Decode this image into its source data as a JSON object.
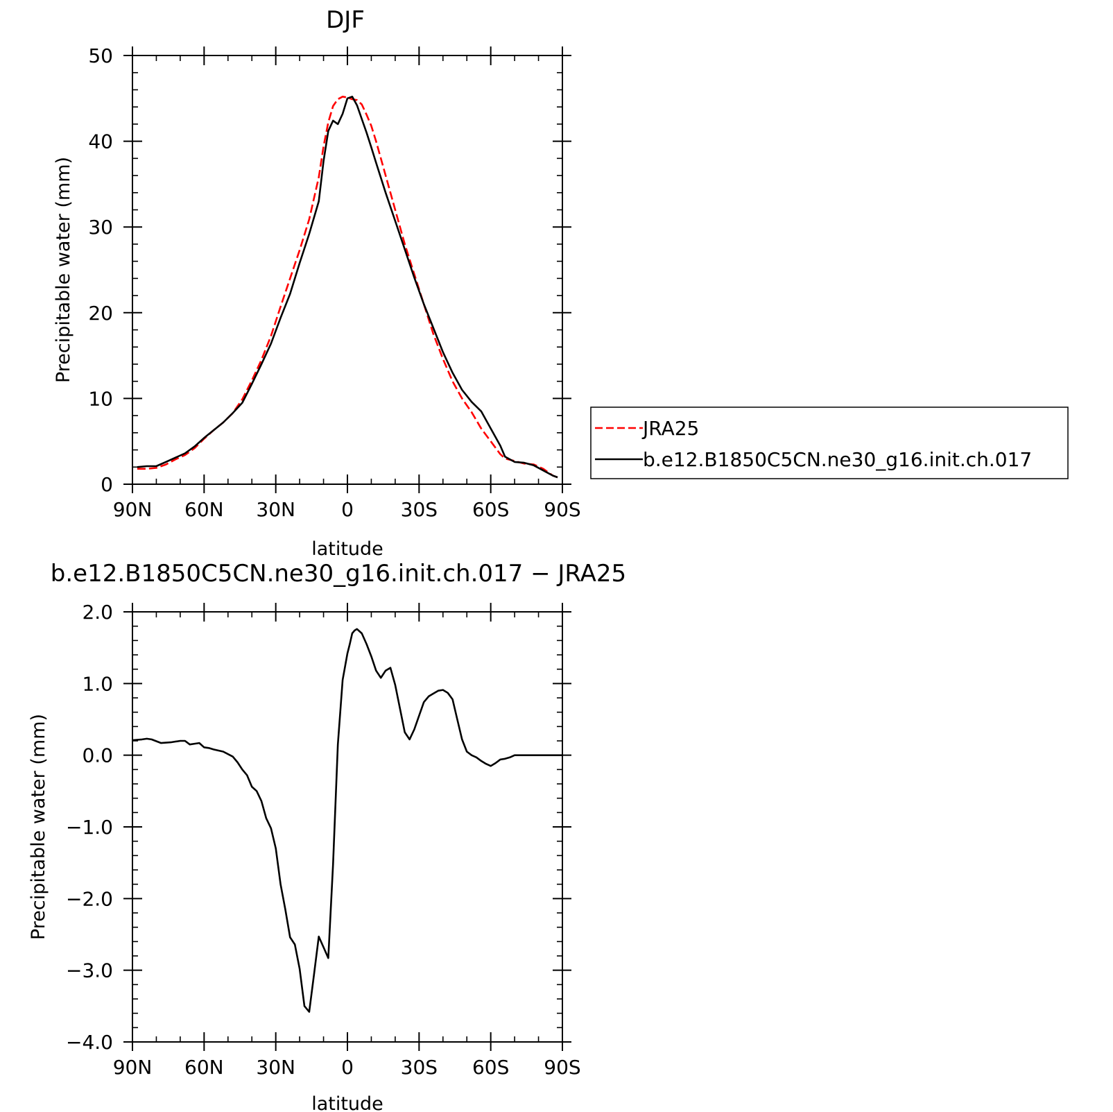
{
  "chart_data": [
    {
      "type": "line",
      "title": "DJF",
      "xlabel": "latitude",
      "ylabel": "Precipitable water (mm)",
      "xlim": [
        90,
        -90
      ],
      "ylim": [
        0,
        50
      ],
      "xticks": [
        90,
        60,
        30,
        0,
        -30,
        -60,
        -90
      ],
      "xtick_labels": [
        "90N",
        "60N",
        "30N",
        "0",
        "30S",
        "60S",
        "90S"
      ],
      "yticks": [
        0,
        10,
        20,
        30,
        40,
        50
      ],
      "ytick_labels": [
        "0",
        "10",
        "20",
        "30",
        "40",
        "50"
      ],
      "legend": "right",
      "series": [
        {
          "name": "JRA25",
          "color": "#ff0000",
          "style": "dashed",
          "x": [
            88,
            84,
            80,
            76,
            72,
            68,
            64,
            60,
            56,
            52,
            48,
            44,
            40,
            36,
            32,
            28,
            24,
            20,
            16,
            12,
            10,
            8,
            6,
            4,
            2,
            0,
            -2,
            -4,
            -6,
            -8,
            -10,
            -12,
            -16,
            -20,
            -24,
            -28,
            -32,
            -36,
            -40,
            -44,
            -48,
            -52,
            -56,
            -60,
            -64,
            -66,
            -70,
            -74,
            -78,
            -82,
            -86,
            -88
          ],
          "y": [
            1.8,
            1.8,
            1.9,
            2.3,
            2.9,
            3.4,
            4.2,
            5.3,
            6.3,
            7.2,
            8.3,
            9.9,
            12.1,
            14.5,
            17.3,
            20.7,
            24.0,
            27.3,
            30.9,
            35.8,
            39.4,
            42.2,
            44.1,
            44.9,
            45.2,
            45.1,
            44.9,
            44.8,
            44.3,
            43.1,
            41.8,
            40.0,
            36.0,
            32.0,
            28.0,
            24.5,
            21.0,
            17.5,
            14.6,
            12.0,
            10.0,
            8.4,
            6.5,
            5.0,
            3.5,
            3.0,
            2.7,
            2.4,
            2.3,
            1.8,
            1.0,
            0.8
          ]
        },
        {
          "name": "b.e12.B1850C5CN.ne30_g16.init.ch.017",
          "color": "#000000",
          "style": "solid",
          "x": [
            88,
            84,
            80,
            76,
            72,
            68,
            64,
            60,
            56,
            52,
            48,
            44,
            40,
            36,
            32,
            28,
            24,
            20,
            16,
            12,
            10,
            8,
            6,
            4,
            2,
            0,
            -2,
            -4,
            -6,
            -8,
            -10,
            -12,
            -16,
            -20,
            -24,
            -28,
            -32,
            -36,
            -40,
            -44,
            -48,
            -52,
            -56,
            -60,
            -64,
            -66,
            -70,
            -74,
            -78,
            -82,
            -86,
            -88
          ],
          "y": [
            2.0,
            2.1,
            2.1,
            2.6,
            3.1,
            3.6,
            4.4,
            5.4,
            6.3,
            7.2,
            8.3,
            9.5,
            11.7,
            14.0,
            16.4,
            19.4,
            22.2,
            25.8,
            29.2,
            33.0,
            37.7,
            41.2,
            42.4,
            42.0,
            43.2,
            45.0,
            45.2,
            44.2,
            42.6,
            41.0,
            39.3,
            37.5,
            34.0,
            30.7,
            27.4,
            24.1,
            21.0,
            18.2,
            15.4,
            13.0,
            11.0,
            9.6,
            8.5,
            6.5,
            4.5,
            3.2,
            2.6,
            2.5,
            2.2,
            1.6,
            1.0,
            0.8
          ]
        }
      ]
    },
    {
      "type": "line",
      "title": "b.e12.B1850C5CN.ne30_g16.init.ch.017 − JRA25",
      "xlabel": "latitude",
      "ylabel": "Precipitable water (mm)",
      "xlim": [
        90,
        -90
      ],
      "ylim": [
        -4.0,
        2.0
      ],
      "xticks": [
        90,
        60,
        30,
        0,
        -30,
        -60,
        -90
      ],
      "xtick_labels": [
        "90N",
        "60N",
        "30N",
        "0",
        "30S",
        "60S",
        "90S"
      ],
      "yticks": [
        -4.0,
        -3.0,
        -2.0,
        -1.0,
        0.0,
        1.0,
        2.0
      ],
      "ytick_labels": [
        "−4.0",
        "−3.0",
        "−2.0",
        "−1.0",
        "0.0",
        "1.0",
        "2.0"
      ],
      "series": [
        {
          "name": "",
          "color": "#000000",
          "style": "solid",
          "x": [
            90,
            86,
            84,
            82,
            78,
            74,
            70,
            68,
            66,
            64,
            62,
            60,
            58,
            56,
            52,
            48,
            46,
            44,
            42,
            40,
            38,
            36,
            34,
            32,
            30,
            28,
            26,
            24,
            22,
            20,
            18,
            16,
            14,
            12,
            10,
            8,
            6,
            4,
            2,
            0,
            -1,
            -2,
            -3,
            -4,
            -6,
            -8,
            -10,
            -12,
            -14,
            -16,
            -18,
            -20,
            -22,
            -24,
            -26,
            -28,
            -30,
            -32,
            -34,
            -36,
            -38,
            -40,
            -42,
            -44,
            -46,
            -48,
            -50,
            -52,
            -54,
            -56,
            -58,
            -60,
            -62,
            -64,
            -66,
            -68,
            -70,
            -72,
            -74,
            -76,
            -78,
            -80,
            -82,
            -84,
            -86,
            -88,
            -90
          ],
          "y": [
            0.21,
            0.22,
            0.23,
            0.22,
            0.17,
            0.18,
            0.2,
            0.2,
            0.15,
            0.16,
            0.17,
            0.11,
            0.1,
            0.08,
            0.05,
            -0.02,
            -0.1,
            -0.2,
            -0.28,
            -0.44,
            -0.5,
            -0.64,
            -0.88,
            -1.02,
            -1.3,
            -1.8,
            -2.15,
            -2.54,
            -2.64,
            -2.98,
            -3.5,
            -3.58,
            -3.06,
            -2.53,
            -2.68,
            -2.83,
            -1.52,
            0.15,
            1.05,
            1.42,
            1.55,
            1.7,
            1.74,
            1.76,
            1.7,
            1.55,
            1.38,
            1.18,
            1.08,
            1.18,
            1.22,
            0.98,
            0.65,
            0.32,
            0.22,
            0.36,
            0.55,
            0.74,
            0.82,
            0.86,
            0.9,
            0.91,
            0.87,
            0.78,
            0.5,
            0.22,
            0.05,
            0.0,
            -0.03,
            -0.08,
            -0.12,
            -0.15,
            -0.11,
            -0.06,
            -0.05,
            -0.03,
            0.0,
            0.0,
            0.0,
            0.0,
            0.0,
            0.0,
            0.0,
            0.0,
            0.0,
            0.0,
            0.0
          ]
        }
      ]
    }
  ]
}
